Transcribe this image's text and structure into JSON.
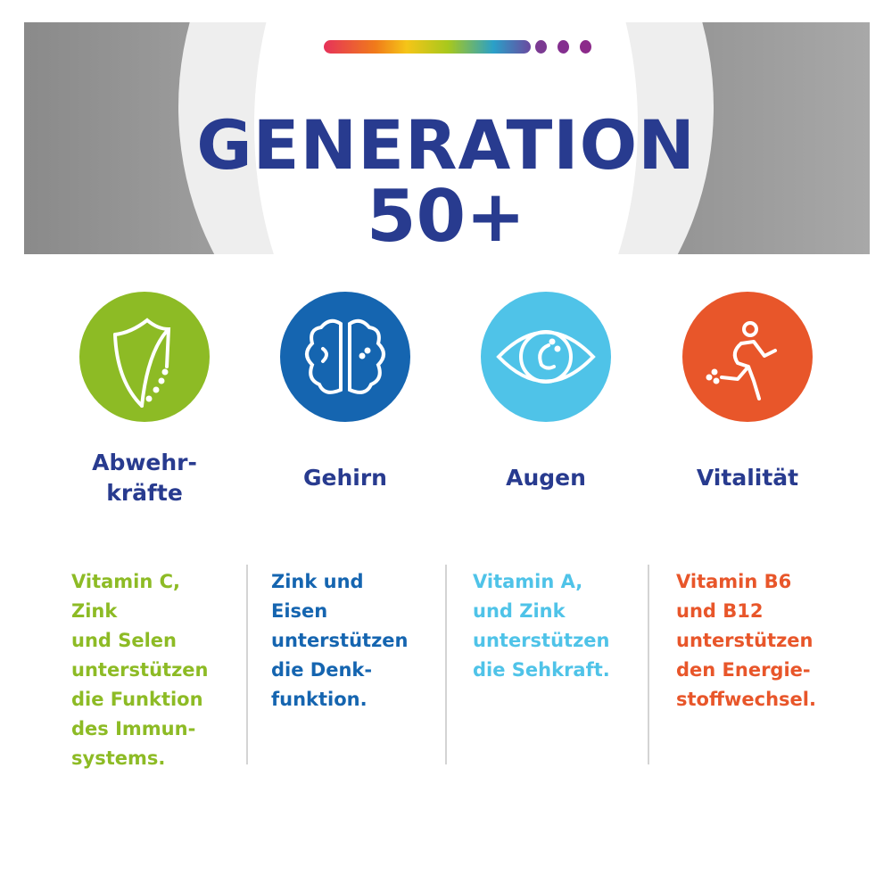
{
  "header": {
    "title_line1": "GENERATION",
    "title_line2": "50+",
    "rainbow_bar_colors": [
      "#e6325a",
      "#f07b1a",
      "#f5c518",
      "#a8c81c",
      "#2aa0c8",
      "#6a4aa0"
    ],
    "dot_colors": [
      "#7b3a92",
      "#842f8f",
      "#8c2a8a"
    ]
  },
  "colors": {
    "title": "#283b8f",
    "green": "#8dbb25",
    "blue": "#1565b0",
    "light_blue": "#4fc3e8",
    "orange": "#e8562a"
  },
  "benefits": [
    {
      "icon": "shield-icon",
      "label": "Abwehr-\nkräfte",
      "color": "#8dbb25",
      "text": "Vitamin C,\nZink\nund Selen\nunterstützen\ndie Funktion\ndes Immun-\nsystems."
    },
    {
      "icon": "brain-icon",
      "label": "Gehirn",
      "color": "#1565b0",
      "text": "Zink und\nEisen\nunterstützen\ndie Denk-\nfunktion."
    },
    {
      "icon": "eye-icon",
      "label": "Augen",
      "color": "#4fc3e8",
      "text": "Vitamin A,\nund Zink\nunterstützen\ndie Sehkraft."
    },
    {
      "icon": "runner-icon",
      "label": "Vitalität",
      "color": "#e8562a",
      "text": "Vitamin B6\nund B12\nunterstützen\nden Energie-\nstoffwechsel."
    }
  ]
}
